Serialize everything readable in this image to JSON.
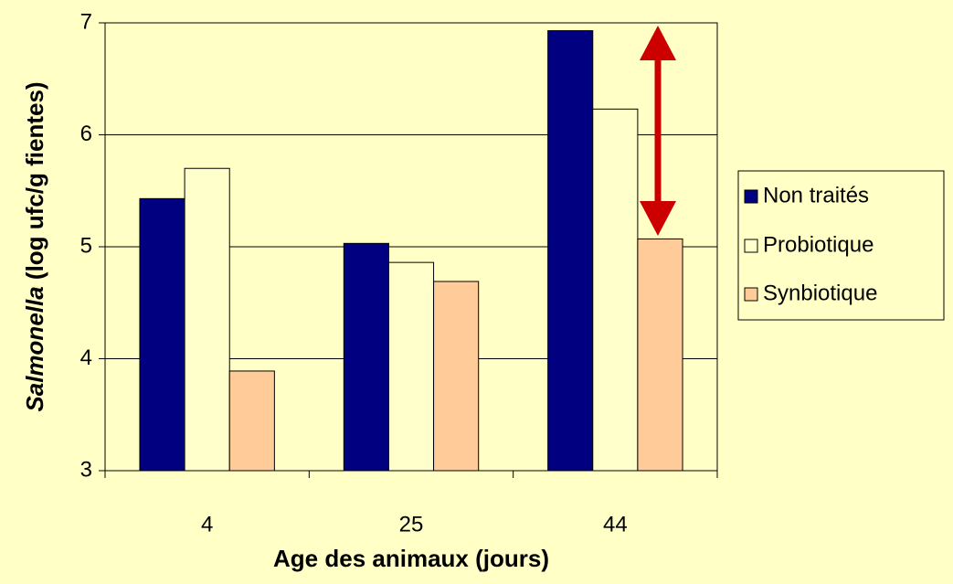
{
  "chart_data": {
    "type": "bar",
    "y_label": {
      "italic": "Salmonella",
      "rest": "(log ufc/g fientes)"
    },
    "x_label": "Age des animaux (jours)",
    "categories": [
      "4",
      "25",
      "44"
    ],
    "series": [
      {
        "name": "Non traités",
        "color": "#000080",
        "values": [
          5.43,
          5.03,
          6.93
        ]
      },
      {
        "name": "Probiotique",
        "color": "#FFFFCC",
        "values": [
          5.7,
          4.86,
          6.23
        ]
      },
      {
        "name": "Synbiotique",
        "color": "#FFCC99",
        "values": [
          3.89,
          4.69,
          5.07
        ]
      }
    ],
    "ylim": [
      3,
      7
    ],
    "yticks": [
      3,
      4,
      5,
      6,
      7
    ],
    "grid": true,
    "legend": "right"
  }
}
